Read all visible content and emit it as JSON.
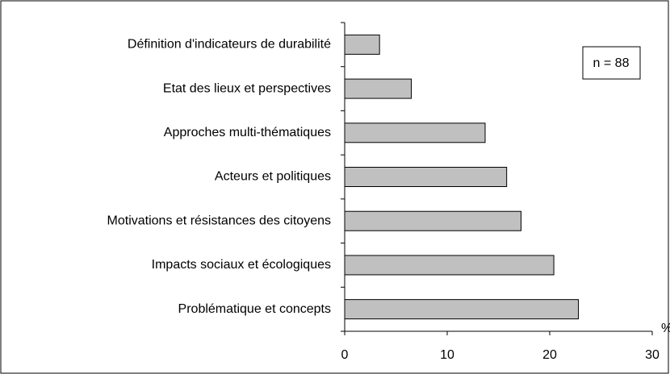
{
  "chart_data": {
    "type": "barh",
    "categories": [
      "Définition d'indicateurs de durabilité",
      "Etat des lieux et perspectives",
      "Approches multi-thématiques",
      "Acteurs et politiques",
      "Motivations et résistances des citoyens",
      "Impacts sociaux et écologiques",
      "Problématique et concepts"
    ],
    "values": [
      3.4,
      6.5,
      13.7,
      15.8,
      17.2,
      20.4,
      22.8
    ],
    "color": "#c0c0c0",
    "xlim": [
      0,
      30
    ],
    "xticks": [
      0,
      10,
      20,
      30
    ],
    "xlabel": "%",
    "annotation": "n = 88",
    "grid": false
  }
}
